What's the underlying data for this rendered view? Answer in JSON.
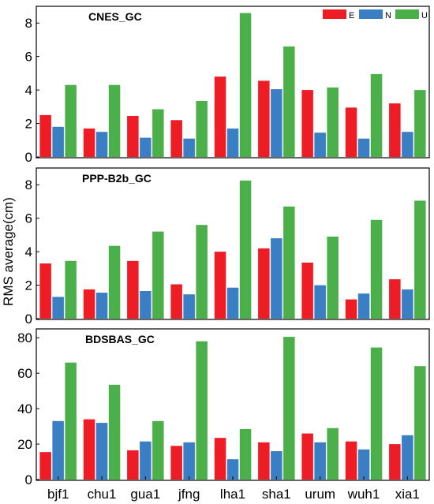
{
  "figure": {
    "ylabel": "RMS average(cm)",
    "legend": [
      {
        "name": "E",
        "color": "#ee1c25"
      },
      {
        "name": "N",
        "color": "#3a7ec4"
      },
      {
        "name": "U",
        "color": "#4bb04a"
      }
    ],
    "legend_placement": "top-right of first panel"
  },
  "chart_data": [
    {
      "type": "bar",
      "title": "CNES_GC",
      "categories": [
        "bjf1",
        "chu1",
        "gua1",
        "jfng",
        "lha1",
        "sha1",
        "urum",
        "wuh1",
        "xia1"
      ],
      "ylim": [
        0,
        9
      ],
      "yticks": [
        0,
        2,
        4,
        6,
        8
      ],
      "series": [
        {
          "name": "E",
          "values": [
            2.5,
            1.7,
            2.45,
            2.2,
            4.8,
            4.55,
            4.0,
            2.95,
            3.2
          ]
        },
        {
          "name": "N",
          "values": [
            1.8,
            1.5,
            1.15,
            1.1,
            1.7,
            4.05,
            1.45,
            1.1,
            1.5
          ]
        },
        {
          "name": "U",
          "values": [
            4.3,
            4.3,
            2.85,
            3.35,
            8.6,
            6.6,
            4.15,
            4.95,
            4.0
          ]
        }
      ]
    },
    {
      "type": "bar",
      "title": "PPP-B2b_GC",
      "categories": [
        "bjf1",
        "chu1",
        "gua1",
        "jfng",
        "lha1",
        "sha1",
        "urum",
        "wuh1",
        "xia1"
      ],
      "ylim": [
        0,
        9
      ],
      "yticks": [
        0,
        2,
        4,
        6,
        8
      ],
      "series": [
        {
          "name": "E",
          "values": [
            3.3,
            1.75,
            3.45,
            2.05,
            4.0,
            4.2,
            3.35,
            1.15,
            2.35
          ]
        },
        {
          "name": "N",
          "values": [
            1.3,
            1.55,
            1.65,
            1.45,
            1.85,
            4.8,
            2.0,
            1.5,
            1.75
          ]
        },
        {
          "name": "U",
          "values": [
            3.45,
            4.35,
            5.2,
            5.6,
            8.25,
            6.7,
            4.9,
            5.9,
            7.05
          ]
        }
      ]
    },
    {
      "type": "bar",
      "title": "BDSBAS_GC",
      "categories": [
        "bjf1",
        "chu1",
        "gua1",
        "jfng",
        "lha1",
        "sha1",
        "urum",
        "wuh1",
        "xia1"
      ],
      "ylim": [
        0,
        85
      ],
      "yticks": [
        0,
        20,
        40,
        60,
        80
      ],
      "series": [
        {
          "name": "E",
          "values": [
            15.5,
            34.0,
            16.5,
            19.0,
            23.5,
            21.0,
            26.0,
            21.5,
            20.0
          ]
        },
        {
          "name": "N",
          "values": [
            33.0,
            32.0,
            21.5,
            21.0,
            11.5,
            16.0,
            21.0,
            17.0,
            25.0
          ]
        },
        {
          "name": "U",
          "values": [
            66.0,
            53.5,
            33.0,
            78.0,
            28.5,
            80.5,
            29.0,
            74.5,
            64.0
          ]
        }
      ]
    }
  ]
}
